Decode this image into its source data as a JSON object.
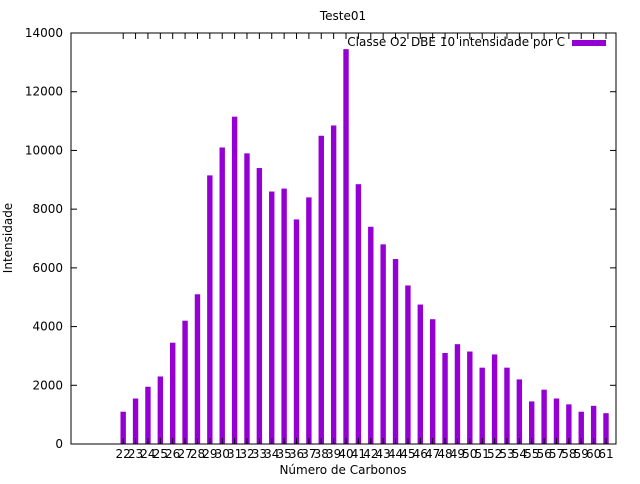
{
  "chart_data": {
    "type": "bar",
    "title": "Teste01",
    "xlabel": "Número de Carbonos",
    "ylabel": "Intensidade",
    "ylim": [
      0,
      14000
    ],
    "yticks": [
      0,
      2000,
      4000,
      6000,
      8000,
      10000,
      12000,
      14000
    ],
    "grid": false,
    "legend_position": "top-right",
    "categories": [
      "22",
      "23",
      "24",
      "25",
      "26",
      "27",
      "28",
      "29",
      "30",
      "31",
      "32",
      "33",
      "34",
      "35",
      "36",
      "37",
      "38",
      "39",
      "40",
      "41",
      "42",
      "43",
      "44",
      "45",
      "46",
      "47",
      "48",
      "49",
      "50",
      "51",
      "52",
      "53",
      "54",
      "55",
      "56",
      "57",
      "58",
      "59",
      "60",
      "61"
    ],
    "series": [
      {
        "name": "Classe O2 DBE 10 intensidade por C",
        "color": "#9400d3",
        "values": [
          1100,
          1550,
          1950,
          2300,
          3450,
          4200,
          5100,
          9150,
          10100,
          11150,
          9900,
          9400,
          8600,
          8700,
          7650,
          8400,
          10500,
          10850,
          13450,
          8850,
          7400,
          6800,
          6300,
          5400,
          4750,
          4250,
          3100,
          3400,
          3150,
          2600,
          3050,
          2600,
          2200,
          1450,
          1850,
          1550,
          1350,
          1100,
          1300,
          1050
        ]
      }
    ]
  }
}
